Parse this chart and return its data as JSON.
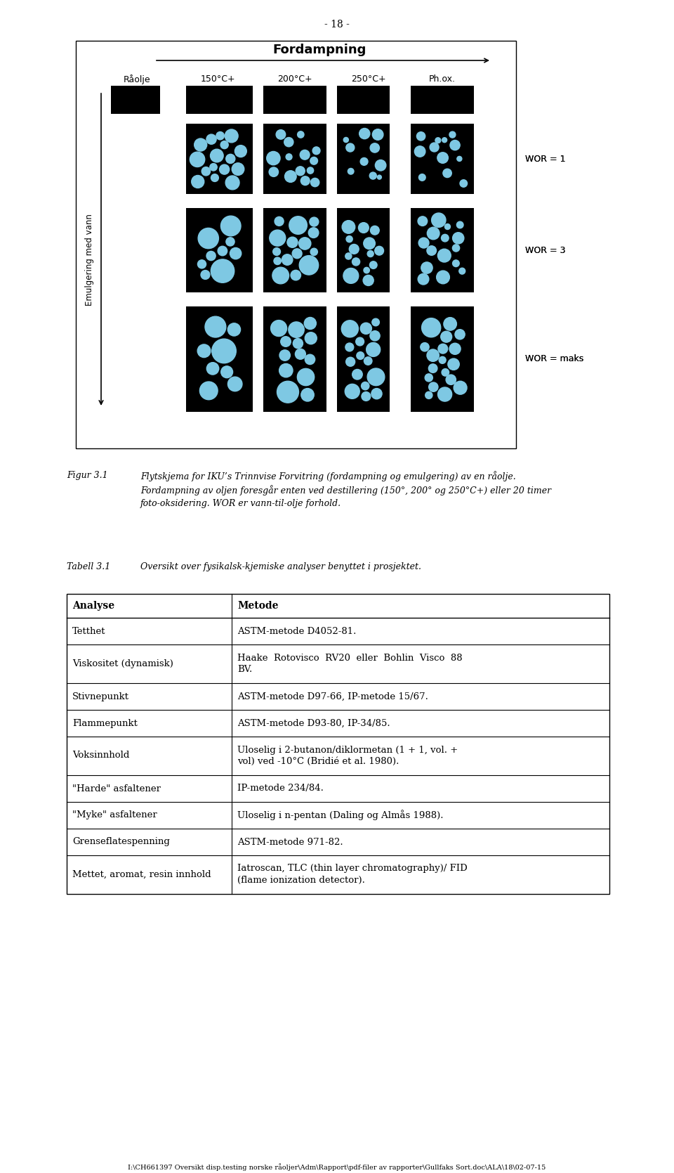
{
  "page_number": "- 18 -",
  "figure_title": "Fordampning",
  "col_labels": [
    "Råolje",
    "150°C+",
    "200°C+",
    "250°C+",
    "Ph.ox."
  ],
  "row_labels": [
    "WOR = 1",
    "WOR = 3",
    "WOR = maks"
  ],
  "y_axis_label": "Emulgering med vann",
  "fig_caption_label": "Figur 3.1",
  "fig_caption_text1": "Flytskjema for IKU’s Trinnvise Forvitring (fordampning og emulgering) av en råolje.",
  "fig_caption_text2": "Fordampning av oljen foresgår enten ved destillering (150°, 200° og 250°C+) eller 20 timer",
  "fig_caption_text3": "foto-oksidering. WOR er vann-til-olje forhold.",
  "table_label": "Tabell 3.1",
  "table_caption": "Oversikt over fysikalsk-kjemiske analyser benyttet i prosjektet.",
  "table_headers": [
    "Analyse",
    "Metode"
  ],
  "table_rows": [
    [
      "Tetthet",
      "ASTM-metode D4052-81."
    ],
    [
      "Viskositet (dynamisk)",
      "Haake  Rotovisco  RV20  eller  Bohlin  Visco  88\nBV."
    ],
    [
      "Stivnepunkt",
      "ASTM-metode D97-66, IP-metode 15/67."
    ],
    [
      "Flammepunkt",
      "ASTM-metode D93-80, IP-34/85."
    ],
    [
      "Voksinnhold",
      "Uloselig i 2-butanon/diklormetan (1 + 1, vol. +\nvol) ved -10°C (Bridié et al. 1980)."
    ],
    [
      "\"Harde\" asfaltener",
      "IP-metode 234/84."
    ],
    [
      "\"Myke\" asfaltener",
      "Uloselig i n-pentan (Daling og Almås 1988)."
    ],
    [
      "Grenseflatespenning",
      "ASTM-metode 971-82."
    ],
    [
      "Mettet, aromat, resin innhold",
      "Iatroscan, TLC (thin layer chromatography)/ FID\n(flame ionization detector)."
    ]
  ],
  "footer_text": "I:\\CH661397 Oversikt disp.testing norske råoljer\\Adm\\Rapport\\pdf-filer av rapporter\\Gullfaks Sort.doc\\ALA\\18\\02-07-15",
  "bg_color": "#ffffff",
  "border_color": "#000000",
  "black_cell": "#000000",
  "blue_circle": "#7ec8e3"
}
